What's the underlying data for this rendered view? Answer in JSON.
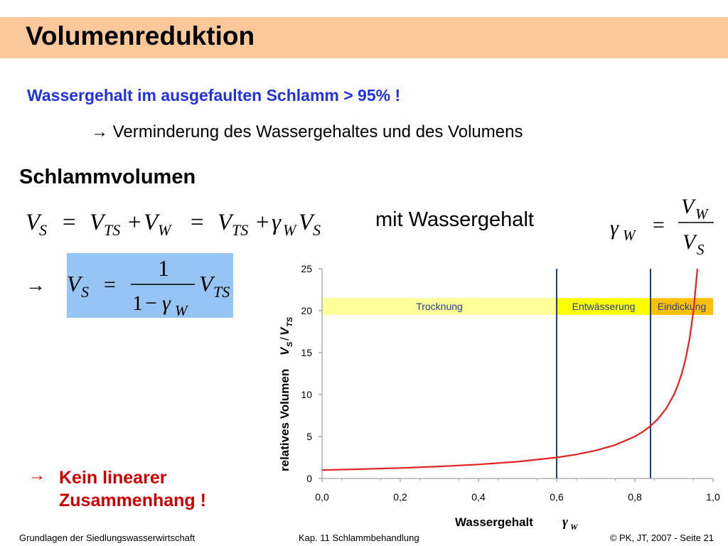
{
  "title": "Volumenreduktion",
  "subtitle": "Wassergehalt im ausgefaulten Schlamm > 95% !",
  "bullet1": {
    "arrow": "→",
    "text": "Verminderung des Wassergehaltes und des Volumens"
  },
  "section": "Schlammvolumen",
  "mit_text": "mit Wassergehalt",
  "arrow_symbol": "→",
  "conclusion": {
    "arrow": "→",
    "line1": "Kein linearer",
    "line2": "Zusammenhang !"
  },
  "footer": {
    "left": "Grundlagen der Siedlungswasserwirtschaft",
    "middle": "Kap. 11  Schlammbehandlung",
    "right": "© PK, JT, 2007 - Seite 21"
  },
  "colors": {
    "title_bar": "#fbc899",
    "subtitle": "#2233dd",
    "formula_box": "#96c5f3",
    "conclusion": "#cc0000",
    "curve": "#e52020",
    "divider": "#1f3f73",
    "band_trocknung": "#ffff99",
    "band_entwaesserung": "#ffff00",
    "band_eindickung": "#ffc000"
  },
  "chart_data": {
    "type": "line",
    "xlabel": "Wassergehalt",
    "xlabel_symbol": "γ",
    "xlabel_sub": "W",
    "ylabel": "relatives Volumen",
    "ylabel_symbol_1": "V",
    "ylabel_sub_1": "S",
    "ylabel_slash": "/",
    "ylabel_symbol_2": "V",
    "ylabel_sub_2": "TS",
    "xlim": [
      0,
      1.0
    ],
    "ylim": [
      0,
      25
    ],
    "x_ticks": [
      "0,0",
      "0,2",
      "0,4",
      "0,6",
      "0,8",
      "1,0"
    ],
    "x_tick_values": [
      0,
      0.2,
      0.4,
      0.6,
      0.8,
      1.0
    ],
    "y_ticks": [
      "0",
      "5",
      "10",
      "15",
      "20",
      "25"
    ],
    "y_tick_values": [
      0,
      5,
      10,
      15,
      20,
      25
    ],
    "grid": false,
    "series": [
      {
        "x": [
          0,
          0.1,
          0.2,
          0.3,
          0.4,
          0.5,
          0.6,
          0.65,
          0.7,
          0.75,
          0.8,
          0.82,
          0.84,
          0.86,
          0.88,
          0.9,
          0.91,
          0.92,
          0.93,
          0.94,
          0.95,
          0.96
        ],
        "y": [
          1,
          1.11,
          1.25,
          1.43,
          1.67,
          2,
          2.5,
          2.86,
          3.33,
          4,
          5,
          5.56,
          6.25,
          7.14,
          8.33,
          10,
          11.11,
          12.5,
          14.29,
          16.67,
          20,
          25
        ]
      }
    ],
    "regions": [
      {
        "label": "Trocknung",
        "x_start": 0.0,
        "x_end": 0.6
      },
      {
        "label": "Entwässerung",
        "x_start": 0.6,
        "x_end": 0.84
      },
      {
        "label": "Eindickung",
        "x_start": 0.84,
        "x_end": 1.0
      }
    ],
    "region_band_y": [
      19.5,
      21.5
    ],
    "dividers": [
      0.6,
      0.84
    ]
  }
}
